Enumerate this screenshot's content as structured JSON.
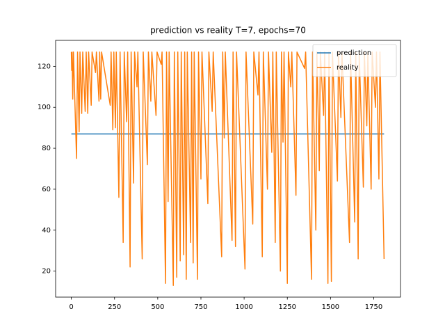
{
  "chart_data": {
    "type": "line",
    "title": "prediction vs reality T=7, epochs=70",
    "xlim": [
      -91,
      1905
    ],
    "ylim": [
      7.3,
      132.7
    ],
    "xticks": [
      0,
      250,
      500,
      750,
      1000,
      1250,
      1500,
      1750
    ],
    "yticks": [
      20,
      40,
      60,
      80,
      100,
      120
    ],
    "grid": false,
    "legend": "upper right",
    "series": [
      {
        "name": "prediction",
        "color": "#1f77b4",
        "x": [
          0,
          1810
        ],
        "values": [
          87,
          87
        ]
      },
      {
        "name": "reality",
        "color": "#ff7f0e",
        "x": [
          0,
          2,
          4,
          8,
          12,
          30,
          36,
          45,
          50,
          60,
          66,
          80,
          86,
          95,
          100,
          115,
          120,
          140,
          145,
          160,
          164,
          170,
          175,
          225,
          230,
          240,
          246,
          255,
          260,
          275,
          282,
          300,
          306,
          320,
          326,
          340,
          346,
          360,
          366,
          380,
          385,
          410,
          416,
          440,
          446,
          460,
          466,
          490,
          496,
          520,
          525,
          545,
          551,
          560,
          566,
          590,
          596,
          610,
          616,
          630,
          636,
          650,
          656,
          665,
          671,
          690,
          696,
          705,
          711,
          730,
          736,
          750,
          756,
          790,
          796,
          815,
          821,
          870,
          876,
          885,
          891,
          930,
          936,
          950,
          956,
          1005,
          1011,
          1050,
          1056,
          1080,
          1086,
          1105,
          1111,
          1135,
          1141,
          1160,
          1166,
          1180,
          1186,
          1210,
          1216,
          1225,
          1231,
          1250,
          1256,
          1270,
          1276,
          1300,
          1306,
          1350,
          1356,
          1390,
          1396,
          1415,
          1421,
          1435,
          1441,
          1460,
          1466,
          1485,
          1491,
          1505,
          1511,
          1540,
          1546,
          1560,
          1566,
          1610,
          1616,
          1640,
          1646,
          1660,
          1666,
          1690,
          1696,
          1710,
          1716,
          1735,
          1741,
          1760,
          1766,
          1780,
          1786,
          1810
        ],
        "values": [
          127,
          118,
          127,
          104,
          127,
          75,
          127,
          88,
          127,
          97,
          127,
          98,
          127,
          97,
          127,
          101,
          127,
          117,
          127,
          103,
          127,
          104,
          127,
          101,
          127,
          89,
          127,
          90,
          127,
          56,
          127,
          34,
          127,
          93,
          127,
          22,
          127,
          63,
          127,
          110,
          127,
          26,
          127,
          72,
          127,
          103,
          127,
          96,
          127,
          121,
          127,
          14,
          127,
          54,
          127,
          13,
          127,
          17,
          127,
          25,
          127,
          28,
          127,
          16,
          127,
          34,
          127,
          24,
          127,
          16,
          127,
          65,
          127,
          53,
          127,
          98,
          127,
          27,
          127,
          85,
          127,
          35,
          127,
          32,
          127,
          21,
          127,
          43,
          127,
          106,
          127,
          27,
          127,
          60,
          127,
          78,
          127,
          34,
          127,
          20,
          127,
          83,
          127,
          14,
          127,
          110,
          127,
          57,
          127,
          119,
          127,
          16,
          127,
          40,
          127,
          69,
          127,
          96,
          127,
          14,
          127,
          15,
          127,
          64,
          127,
          95,
          127,
          34,
          127,
          44,
          127,
          26,
          127,
          61,
          127,
          91,
          127,
          60,
          127,
          100,
          127,
          65,
          127,
          26
        ]
      }
    ]
  }
}
